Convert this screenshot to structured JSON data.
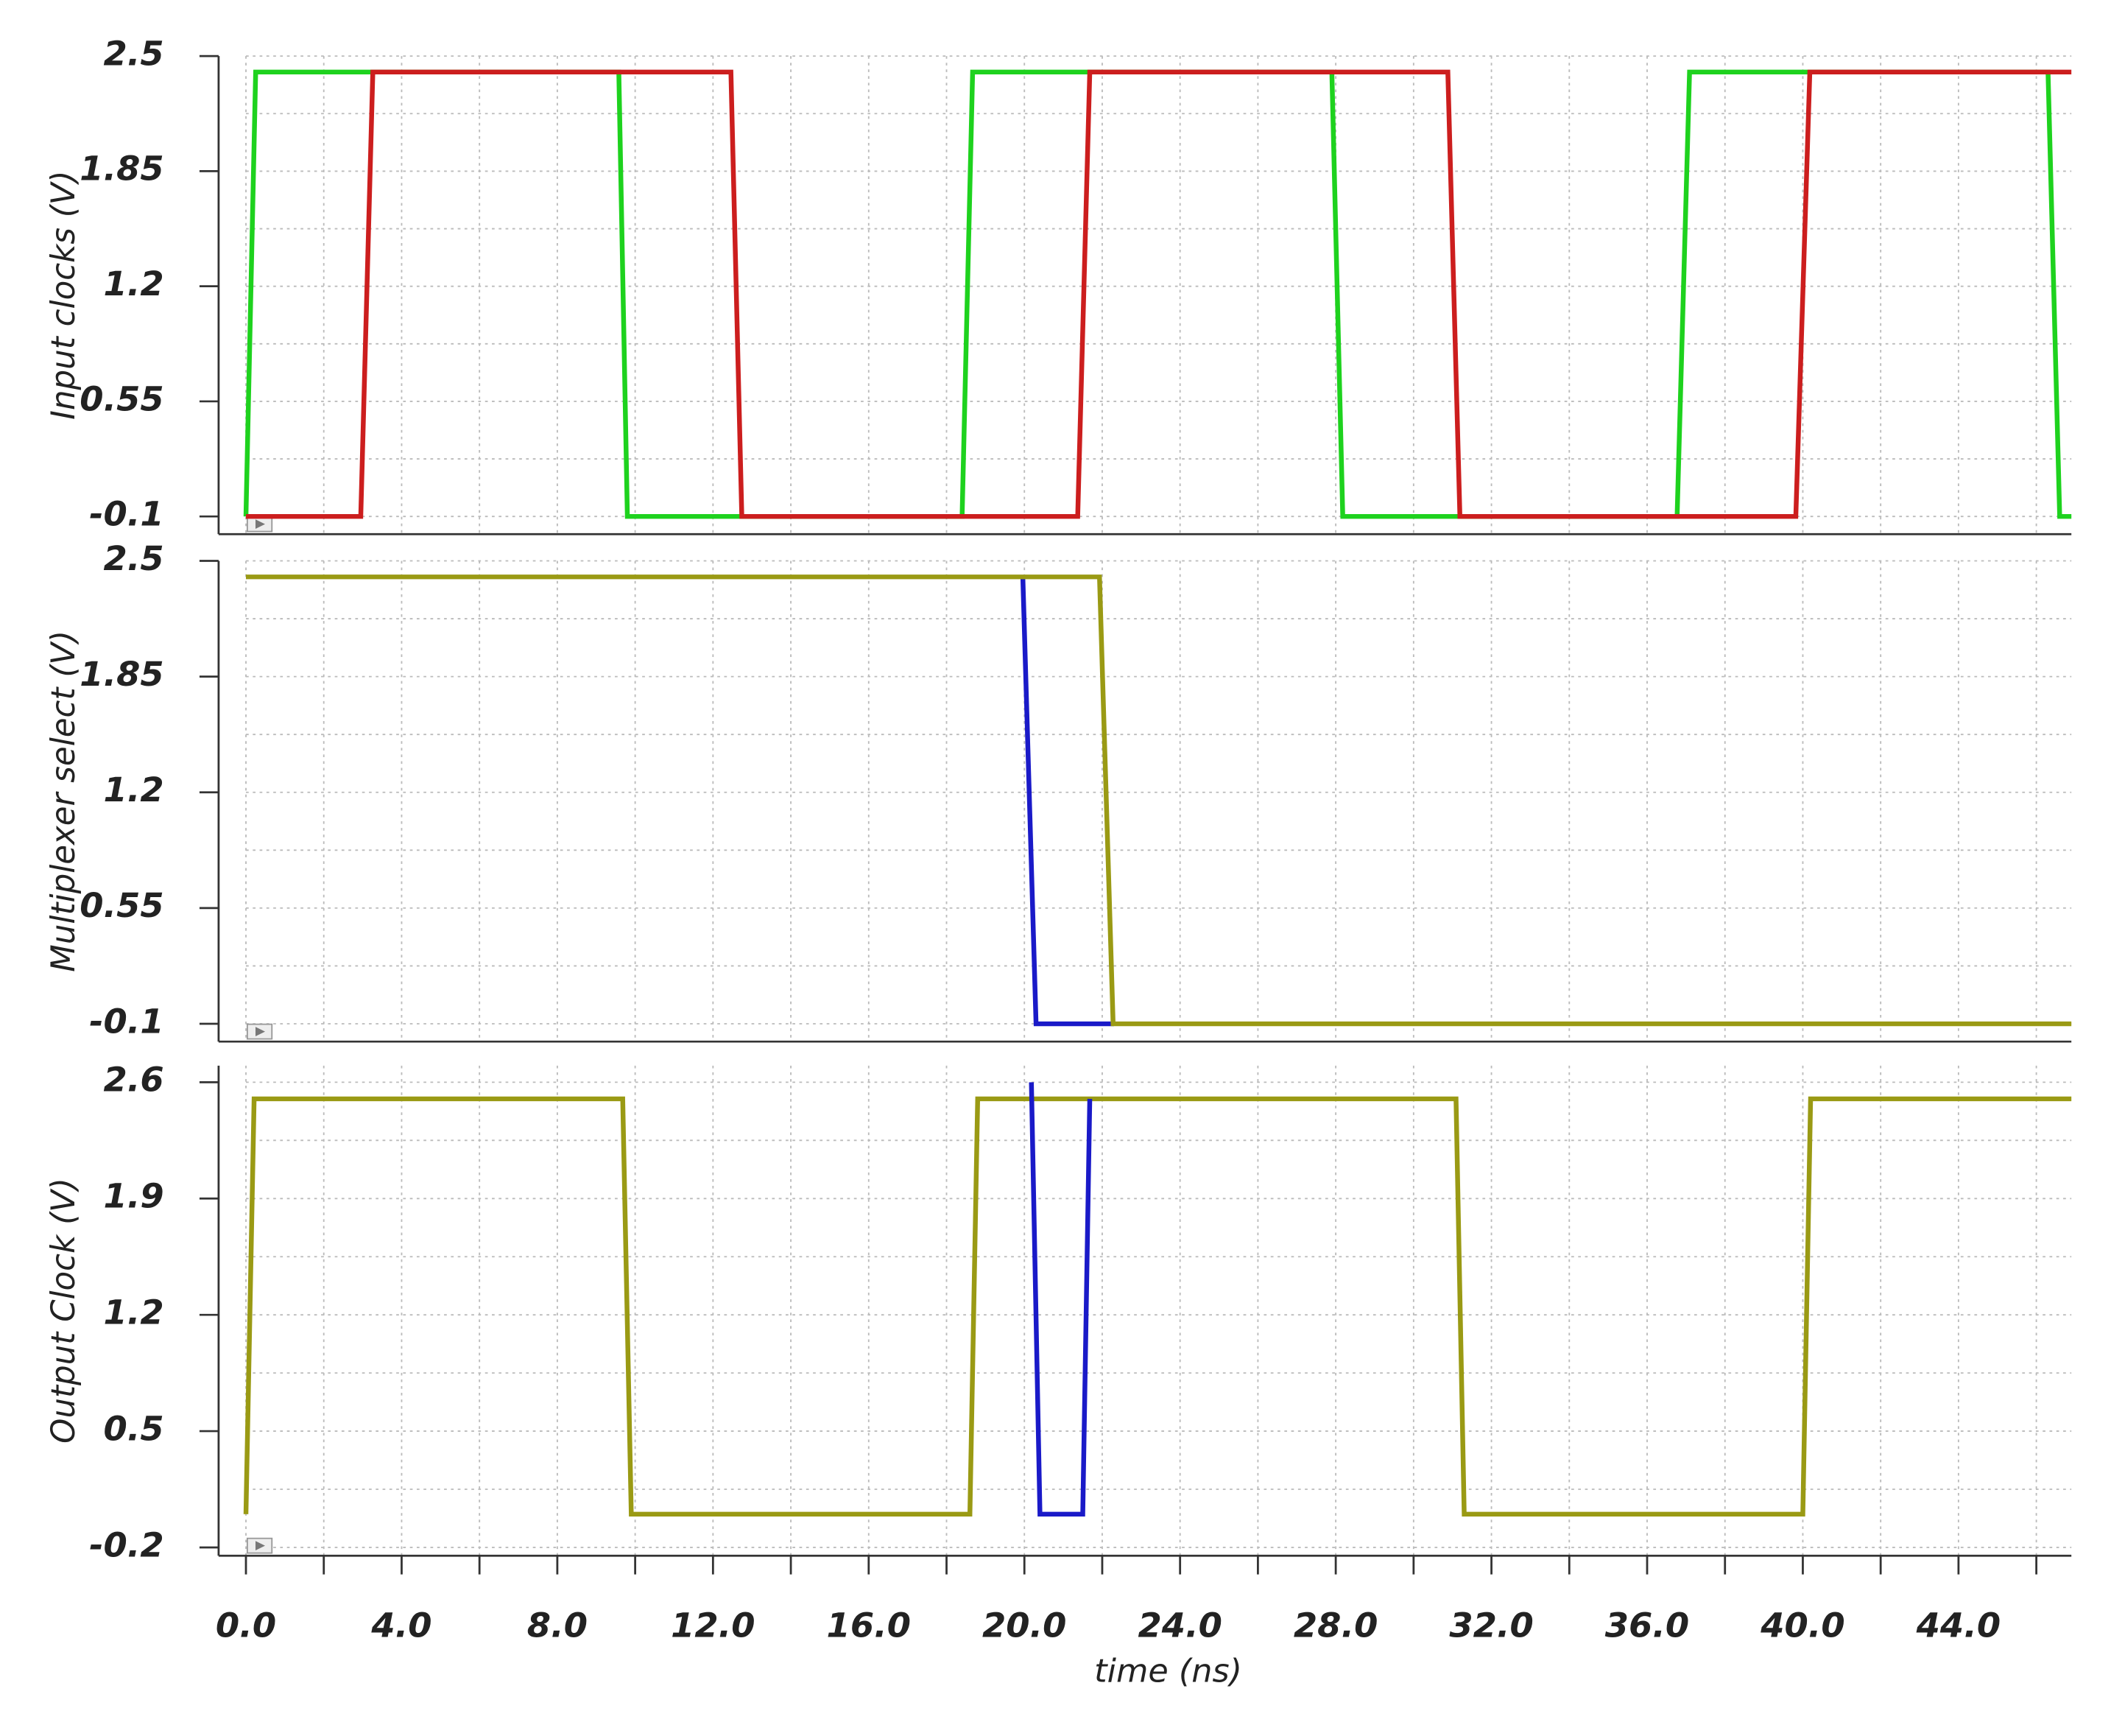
{
  "chart_data": [
    {
      "type": "line",
      "ylabel": "Input clocks (V)",
      "xlim": [
        0,
        46.9
      ],
      "ylim": [
        -0.2,
        2.5
      ],
      "yticks": [
        2.5,
        1.85,
        1.2,
        0.55,
        -0.1
      ],
      "y_minor_ticks": [
        2.175,
        1.525,
        0.875,
        0.225
      ],
      "grid": true,
      "series": [
        {
          "color": "#1ed21e",
          "x": [
            0,
            0.25,
            9.58,
            9.8,
            18.4,
            18.67,
            27.9,
            28.18,
            36.77,
            37.09,
            46.3,
            46.6,
            46.9
          ],
          "values": [
            -0.1,
            2.41,
            2.41,
            -0.1,
            -0.1,
            2.41,
            2.41,
            -0.1,
            -0.1,
            2.41,
            2.41,
            -0.1,
            -0.1
          ]
        },
        {
          "color": "#cc1e1e",
          "x": [
            0,
            2.95,
            3.26,
            12.46,
            12.74,
            21.37,
            21.68,
            30.88,
            31.19,
            39.82,
            40.18,
            46.9
          ],
          "values": [
            -0.1,
            -0.1,
            2.41,
            2.41,
            -0.1,
            -0.1,
            2.41,
            2.41,
            -0.1,
            -0.1,
            2.41,
            2.41
          ]
        }
      ]
    },
    {
      "type": "line",
      "ylabel": "Multiplexer select (V)",
      "xlim": [
        0,
        46.9
      ],
      "ylim": [
        -0.2,
        2.5
      ],
      "yticks": [
        2.5,
        1.85,
        1.2,
        0.55,
        -0.1
      ],
      "y_minor_ticks": [
        2.175,
        1.525,
        0.875,
        0.225
      ],
      "grid": true,
      "series": [
        {
          "color": "#1a1ac8",
          "x": [
            19.96,
            20.3,
            22.3
          ],
          "values": [
            2.41,
            -0.1,
            -0.1
          ]
        },
        {
          "color": "#9a9a14",
          "x": [
            0,
            21.93,
            22.28,
            46.9
          ],
          "values": [
            2.41,
            2.41,
            -0.1,
            -0.1
          ]
        }
      ]
    },
    {
      "type": "line",
      "ylabel": "Output Clock (V)",
      "xlabel": "time (ns)",
      "xlim": [
        0,
        46.9
      ],
      "ylim": [
        -0.25,
        2.7
      ],
      "yticks": [
        2.6,
        1.9,
        1.2,
        0.5,
        -0.2
      ],
      "y_minor_ticks": [
        2.25,
        1.55,
        0.85,
        0.15
      ],
      "grid": true,
      "xticks": [
        {
          "value": 0,
          "label": "0.0"
        },
        {
          "value": 4,
          "label": "4.0"
        },
        {
          "value": 8,
          "label": "8.0"
        },
        {
          "value": 12,
          "label": "12.0"
        },
        {
          "value": 16,
          "label": "16.0"
        },
        {
          "value": 20,
          "label": "20.0"
        },
        {
          "value": 24,
          "label": "24.0"
        },
        {
          "value": 28,
          "label": "28.0"
        },
        {
          "value": 32,
          "label": "32.0"
        },
        {
          "value": 36,
          "label": "36.0"
        },
        {
          "value": 40,
          "label": "40.0"
        },
        {
          "value": 44,
          "label": "44.0"
        }
      ],
      "x_minor_ticks": [
        2,
        6,
        10,
        14,
        18,
        22,
        26,
        30,
        34,
        38,
        42,
        46
      ],
      "series": [
        {
          "color": "#9a9a14",
          "x": [
            0,
            0.21,
            9.68,
            9.9,
            18.6,
            18.8,
            31.09,
            31.3,
            40.0,
            40.2,
            46.9
          ],
          "values": [
            0,
            2.5,
            2.5,
            0,
            0,
            2.5,
            2.5,
            0,
            0,
            2.5,
            2.5
          ]
        },
        {
          "color": "#1a1ac8",
          "x": [
            20.18,
            20.4,
            21.5,
            21.68
          ],
          "values": [
            2.6,
            0,
            0,
            2.5
          ]
        }
      ]
    }
  ]
}
